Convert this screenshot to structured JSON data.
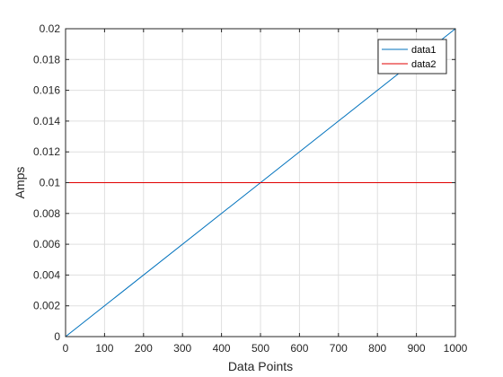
{
  "chart_data": {
    "type": "line",
    "title": "",
    "xlabel": "Data Points",
    "ylabel": "Amps",
    "xlim": [
      0,
      1000
    ],
    "ylim": [
      0,
      0.02
    ],
    "xticks": [
      0,
      100,
      200,
      300,
      400,
      500,
      600,
      700,
      800,
      900,
      1000
    ],
    "xtick_labels": [
      "0",
      "100",
      "200",
      "300",
      "400",
      "500",
      "600",
      "700",
      "800",
      "900",
      "1000"
    ],
    "yticks": [
      0,
      0.002,
      0.004,
      0.006,
      0.008,
      0.01,
      0.012,
      0.014,
      0.016,
      0.018,
      0.02
    ],
    "ytick_labels": [
      "0",
      "0.002",
      "0.004",
      "0.006",
      "0.008",
      "0.01",
      "0.012",
      "0.014",
      "0.016",
      "0.018",
      "0.02"
    ],
    "grid": true,
    "legend_position": "top-right",
    "series": [
      {
        "name": "data1",
        "color": "#0072BD",
        "x": [
          0,
          1000
        ],
        "y": [
          0,
          0.02
        ]
      },
      {
        "name": "data2",
        "color": "#E00000",
        "x": [
          0,
          1000
        ],
        "y": [
          0.01,
          0.01
        ]
      }
    ]
  }
}
